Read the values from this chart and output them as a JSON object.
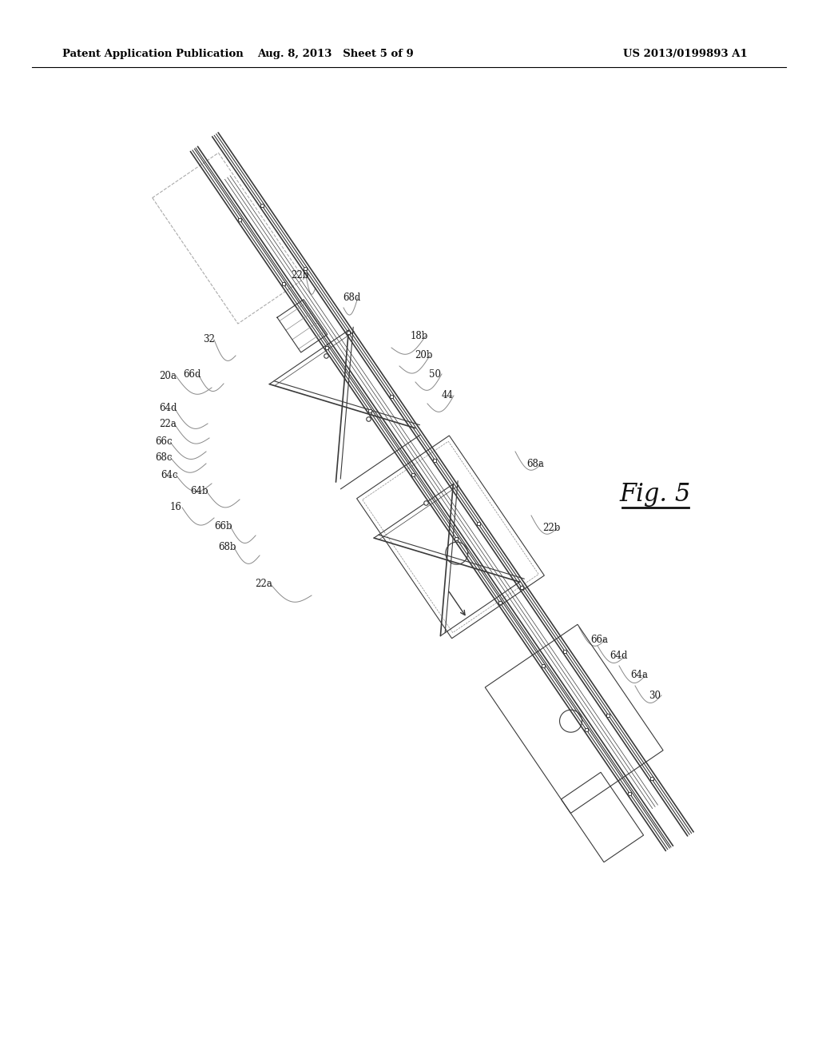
{
  "bg_color": "#ffffff",
  "header_left": "Patent Application Publication",
  "header_center": "Aug. 8, 2013   Sheet 5 of 9",
  "header_right": "US 2013/0199893 A1",
  "fig_label": "Fig. 5",
  "line_color": "#3a3a3a",
  "light_color": "#888888"
}
